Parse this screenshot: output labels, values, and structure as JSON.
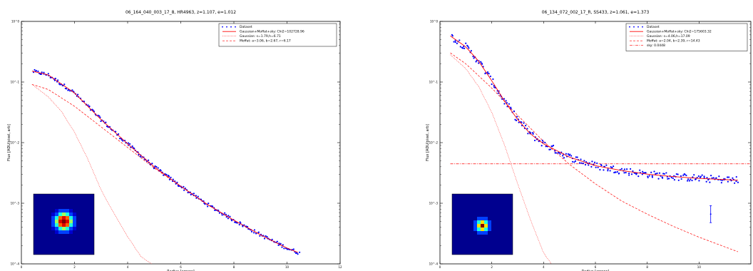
{
  "chart_data": [
    {
      "type": "scatter",
      "title": "06_164_040_003_17_8, HR4963, z=1.107, e=1.012",
      "xlabel": "Radius [arcsec]",
      "ylabel": "Flux [ADU/pixel, arb]",
      "xlim": [
        0,
        12
      ],
      "xticks": [
        "0",
        "2",
        "4",
        "6",
        "8",
        "10",
        "12"
      ],
      "ylog": true,
      "ylim_exp": [
        -4,
        0
      ],
      "yticks": [
        "10^0",
        "10^-1",
        "10^-2",
        "10^-3",
        "10^-4"
      ],
      "grid": false,
      "legend_position": "top-right",
      "legend": [
        "Dataset",
        "Gaussian+Moffat+sky: Chi2=102728.96",
        "Gaussian: s=1.79,h=6.71",
        "Moffat: a=3.06, b=2.67, r=6.17"
      ],
      "inset": "psf-image",
      "fit_curve": {
        "x": [
          0.4,
          1,
          2,
          3,
          4,
          5,
          6,
          7,
          8,
          9,
          10,
          10.4
        ],
        "y_log": [
          -0.82,
          -0.88,
          -1.18,
          -1.62,
          -2.02,
          -2.4,
          -2.72,
          -3.02,
          -3.28,
          -3.52,
          -3.74,
          -3.81
        ]
      },
      "gaussian_curve": {
        "x": [
          0.4,
          1,
          1.5,
          2,
          2.5,
          3,
          3.5,
          4,
          4.5,
          4.9
        ],
        "y_log": [
          -1.04,
          -1.24,
          -1.48,
          -1.83,
          -2.27,
          -2.78,
          -3.18,
          -3.55,
          -3.88,
          -4.0
        ]
      },
      "moffat_curve": {
        "x": [
          0.4,
          1,
          2,
          3,
          4,
          5,
          6,
          7,
          8,
          9,
          10,
          10.4
        ],
        "y_log": [
          -1.04,
          -1.12,
          -1.4,
          -1.74,
          -2.08,
          -2.42,
          -2.72,
          -3.02,
          -3.28,
          -3.52,
          -3.74,
          -3.81
        ]
      },
      "points": {
        "x_start": 0.45,
        "x_end": 10.45,
        "count": 240,
        "scatter": 0.03
      }
    },
    {
      "type": "scatter",
      "title": "06_134_072_002_17_R, SS433, z=1.061, e=1.373",
      "xlabel": "Radius [arcsec]",
      "ylabel": "Flux [ADU/pixel, arb]",
      "xlim": [
        0,
        12
      ],
      "xticks": [
        "0",
        "2",
        "4",
        "6",
        "8",
        "10"
      ],
      "ylog": true,
      "ylim_exp": [
        -4,
        0
      ],
      "yticks": [
        "10^0",
        "10^-1",
        "10^-2",
        "10^-3",
        "10^-4"
      ],
      "grid": false,
      "legend_position": "top-right",
      "legend": [
        "Dataset",
        "Gaussian+Moffat+sky: Chi2=175603.32",
        "Gaussian: s=4.06,h=17.09",
        "Moffat: a=2.04, b=2.39, r=14.43",
        "sky: 0.0448"
      ],
      "inset": "psf-image",
      "fit_curve": {
        "x": [
          0.4,
          1,
          1.5,
          2,
          2.5,
          3,
          3.5,
          4,
          5,
          6,
          7,
          8,
          9,
          10,
          11,
          11.5
        ],
        "y_log": [
          -0.24,
          -0.42,
          -0.66,
          -0.98,
          -1.32,
          -1.62,
          -1.86,
          -2.02,
          -2.24,
          -2.38,
          -2.46,
          -2.52,
          -2.56,
          -2.59,
          -2.61,
          -2.62
        ]
      },
      "gaussian_curve": {
        "x": [
          0.4,
          1,
          1.5,
          2,
          2.5,
          3,
          3.5,
          4,
          4.3
        ],
        "y_log": [
          -0.55,
          -0.78,
          -1.08,
          -1.5,
          -2.05,
          -2.68,
          -3.28,
          -3.82,
          -4.0
        ]
      },
      "moffat_curve": {
        "x": [
          0.4,
          1,
          2,
          3,
          4,
          5,
          6,
          7,
          8,
          9,
          10,
          11,
          11.5
        ],
        "y_log": [
          -0.52,
          -0.7,
          -1.1,
          -1.55,
          -1.98,
          -2.36,
          -2.68,
          -2.96,
          -3.18,
          -3.38,
          -3.56,
          -3.72,
          -3.8
        ]
      },
      "sky_level_log": -2.35,
      "errorbar": {
        "x": 10.45,
        "y_log": -3.18,
        "err_log": 0.14
      },
      "points": {
        "x_start": 0.45,
        "x_end": 11.5,
        "count": 260,
        "scatter": 0.06
      }
    }
  ]
}
